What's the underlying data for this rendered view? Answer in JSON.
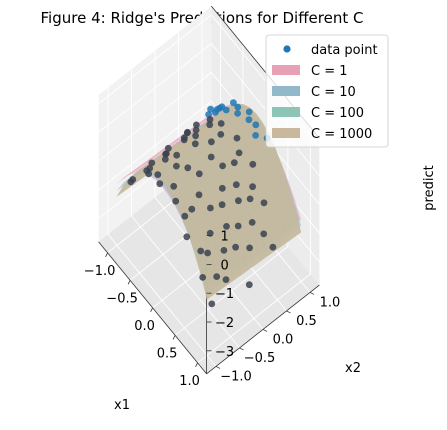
{
  "chart_data": {
    "type": "surface3d",
    "title": "Figure 4: Ridge's Predictions for Different C",
    "xlabel": "x1",
    "ylabel": "x2",
    "zlabel": "predict",
    "xlim": [
      -1.2,
      1.2
    ],
    "ylim": [
      -1.2,
      1.2
    ],
    "zlim": [
      -3.8,
      1.3
    ],
    "x_ticks": [
      -1.0,
      -0.5,
      0.0,
      0.5,
      1.0
    ],
    "y_ticks": [
      -1.0,
      -0.5,
      0.0,
      0.5,
      1.0
    ],
    "z_ticks": [
      -3,
      -2,
      -1,
      0,
      1
    ],
    "x_tick_labels": [
      "−1.0",
      "−0.5",
      "0.0",
      "0.5",
      "1.0"
    ],
    "y_tick_labels": [
      "−1.0",
      "−0.5",
      "0.0",
      "0.5",
      "1.0"
    ],
    "z_tick_labels": [
      "−3",
      "−2",
      "−1",
      "0",
      "1"
    ],
    "grid": true,
    "legend_position": "top-right",
    "scatter": {
      "name": "data point",
      "color": "#1f77b4",
      "points": [
        [
          -0.95,
          0.9,
          -1.6
        ],
        [
          -0.85,
          0.95,
          -1.4
        ],
        [
          -0.8,
          0.8,
          -1.0
        ],
        [
          -0.7,
          0.9,
          -0.9
        ],
        [
          -0.6,
          0.85,
          -0.6
        ],
        [
          -0.55,
          0.7,
          -0.4
        ],
        [
          -0.45,
          0.95,
          -0.3
        ],
        [
          -0.4,
          0.75,
          -0.2
        ],
        [
          -0.3,
          0.9,
          -0.1
        ],
        [
          -0.2,
          0.8,
          0.0
        ],
        [
          -0.1,
          0.95,
          0.05
        ],
        [
          0.0,
          0.85,
          0.1
        ],
        [
          0.1,
          0.9,
          0.05
        ],
        [
          0.2,
          0.8,
          0.0
        ],
        [
          0.3,
          0.95,
          -0.1
        ],
        [
          -1.0,
          0.5,
          -1.8
        ],
        [
          -0.9,
          0.4,
          -1.5
        ],
        [
          -0.75,
          0.45,
          -1.0
        ],
        [
          -0.6,
          0.3,
          -0.7
        ],
        [
          -0.5,
          0.5,
          -0.4
        ],
        [
          -0.35,
          0.35,
          -0.1
        ],
        [
          -0.2,
          0.45,
          0.1
        ],
        [
          -0.05,
          0.3,
          0.2
        ],
        [
          0.1,
          0.5,
          0.1
        ],
        [
          0.25,
          0.4,
          0.0
        ],
        [
          0.4,
          0.55,
          -0.3
        ],
        [
          0.55,
          0.4,
          -0.6
        ],
        [
          0.7,
          0.5,
          -1.0
        ],
        [
          0.85,
          0.35,
          -1.6
        ],
        [
          0.95,
          0.45,
          -2.0
        ],
        [
          -0.95,
          0.0,
          -1.8
        ],
        [
          -0.8,
          -0.1,
          -1.2
        ],
        [
          -0.65,
          0.1,
          -0.8
        ],
        [
          -0.5,
          -0.05,
          -0.4
        ],
        [
          -0.35,
          0.05,
          -0.1
        ],
        [
          -0.2,
          -0.1,
          0.1
        ],
        [
          -0.05,
          0.1,
          0.2
        ],
        [
          0.1,
          -0.05,
          0.15
        ],
        [
          0.25,
          0.05,
          0.0
        ],
        [
          0.4,
          -0.1,
          -0.3
        ],
        [
          0.55,
          0.1,
          -0.7
        ],
        [
          0.7,
          -0.05,
          -1.1
        ],
        [
          0.85,
          0.05,
          -1.7
        ],
        [
          1.0,
          -0.1,
          -2.5
        ],
        [
          -0.9,
          -0.4,
          -1.7
        ],
        [
          -0.75,
          -0.5,
          -1.1
        ],
        [
          -0.6,
          -0.35,
          -0.7
        ],
        [
          -0.45,
          -0.5,
          -0.4
        ],
        [
          -0.3,
          -0.4,
          -0.1
        ],
        [
          -0.15,
          -0.55,
          0.0
        ],
        [
          0.0,
          -0.45,
          0.1
        ],
        [
          0.15,
          -0.35,
          0.05
        ],
        [
          0.3,
          -0.5,
          -0.2
        ],
        [
          0.45,
          -0.4,
          -0.5
        ],
        [
          0.6,
          -0.55,
          -0.9
        ],
        [
          0.75,
          -0.4,
          -1.4
        ],
        [
          0.9,
          -0.5,
          -2.0
        ],
        [
          -0.85,
          -0.85,
          -1.5
        ],
        [
          -0.7,
          -0.95,
          -1.0
        ],
        [
          -0.55,
          -0.8,
          -0.6
        ],
        [
          -0.4,
          -0.9,
          -0.3
        ],
        [
          -0.25,
          -0.85,
          -0.1
        ],
        [
          -0.1,
          -0.95,
          0.0
        ],
        [
          0.05,
          -0.8,
          0.0
        ],
        [
          0.2,
          -0.9,
          -0.1
        ],
        [
          0.35,
          -0.85,
          -0.4
        ],
        [
          0.5,
          -0.95,
          -0.7
        ],
        [
          0.65,
          -0.8,
          -1.1
        ],
        [
          0.8,
          -0.9,
          -1.6
        ],
        [
          0.95,
          -0.85,
          -2.3
        ],
        [
          0.3,
          0.25,
          -0.05
        ],
        [
          0.45,
          0.15,
          -0.4
        ],
        [
          0.6,
          0.3,
          -0.8
        ],
        [
          0.75,
          0.2,
          -1.2
        ],
        [
          0.5,
          -0.2,
          -0.55
        ],
        [
          0.65,
          -0.25,
          -0.95
        ],
        [
          0.8,
          -0.2,
          -1.45
        ],
        [
          0.35,
          -0.7,
          -0.35
        ],
        [
          0.7,
          -0.7,
          -1.2
        ],
        [
          0.85,
          -0.65,
          -1.8
        ]
      ]
    },
    "series": [
      {
        "name": "C = 1",
        "color": "#e8a0b4",
        "a": 0.05,
        "b": -1.7,
        "c": 0.1,
        "d": -0.1
      },
      {
        "name": "C = 10",
        "color": "#91b9c9",
        "a": 0.12,
        "b": -2.0,
        "c": 0.12,
        "d": -0.1
      },
      {
        "name": "C = 100",
        "color": "#8cc5b5",
        "a": 0.22,
        "b": -2.3,
        "c": 0.12,
        "d": -0.12
      },
      {
        "name": "C = 1000",
        "color": "#c9b89c",
        "a": 0.25,
        "b": -2.35,
        "c": 0.12,
        "d": -0.12
      }
    ]
  }
}
